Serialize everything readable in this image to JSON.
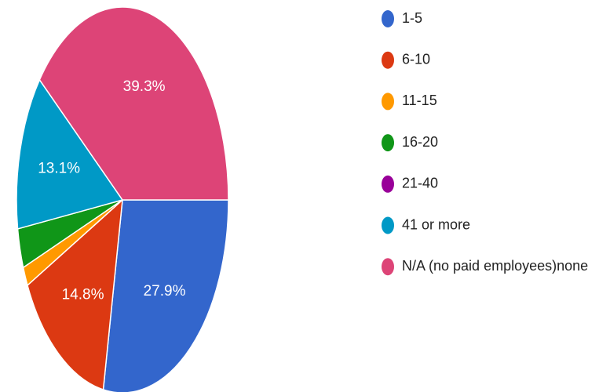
{
  "chart_data": {
    "type": "pie",
    "categories": [
      "1-5",
      "6-10",
      "11-15",
      "16-20",
      "21-40",
      "41 or more",
      "N/A (no paid employees)none"
    ],
    "values": [
      27.9,
      14.8,
      1.6,
      3.3,
      0,
      13.1,
      39.3
    ],
    "value_labels": [
      "27.9%",
      "14.8%",
      null,
      null,
      null,
      "13.1%",
      "39.3%"
    ],
    "colors": [
      "#3366cc",
      "#dc3912",
      "#ff9900",
      "#109618",
      "#990099",
      "#0099c6",
      "#dd4477"
    ],
    "legend": "right"
  }
}
